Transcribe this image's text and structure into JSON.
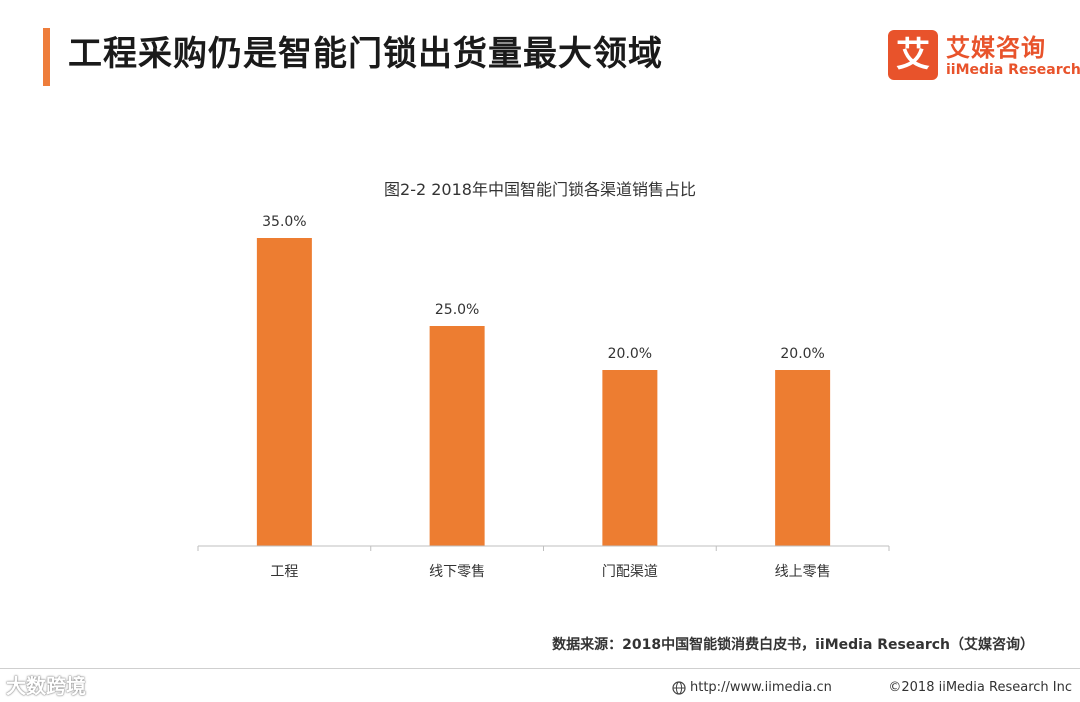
{
  "header": {
    "title": "工程采购仍是智能门锁出货量最大领域",
    "accent_color": "#ee7d3b"
  },
  "logo": {
    "mark": "艾",
    "name_cn": "艾媒咨询",
    "name_en": "iiMedia Research",
    "color": "#e8532b"
  },
  "chart_data": {
    "type": "bar",
    "title": "图2-2 2018年中国智能门锁各渠道销售占比",
    "categories": [
      "工程",
      "线下零售",
      "门配渠道",
      "线上零售"
    ],
    "values": [
      35.0,
      25.0,
      20.0,
      20.0
    ],
    "value_labels": [
      "35.0%",
      "25.0%",
      "20.0%",
      "20.0%"
    ],
    "ylim": [
      0,
      35
    ],
    "bar_color": "#ed7d31",
    "grid": false,
    "xlabel": "",
    "ylabel": ""
  },
  "source": "数据来源：2018中国智能锁消费白皮书，iiMedia Research（艾媒咨询）",
  "footer": {
    "watermark": "大数跨境",
    "url": "http://www.iimedia.cn",
    "copyright": "©2018 iiMedia Research Inc"
  }
}
